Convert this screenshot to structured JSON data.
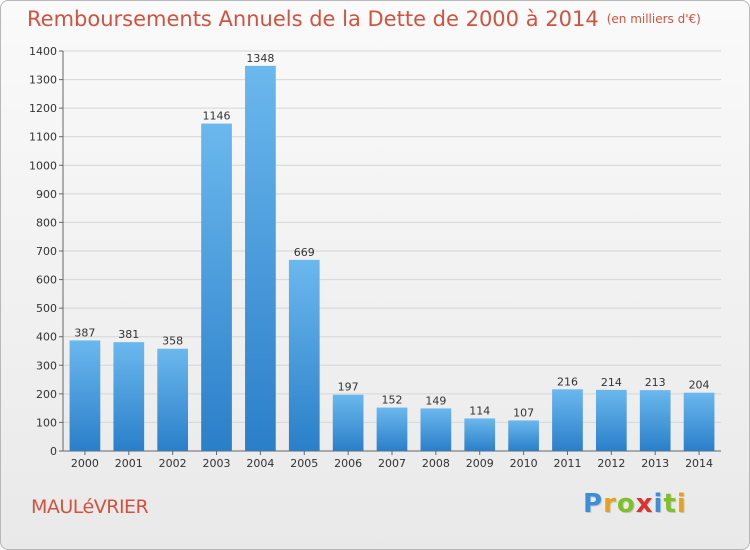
{
  "title": "Remboursements Annuels de la Dette de 2000 à 2014",
  "unit_label": "(en milliers d'€)",
  "commune": "MAULéVRIER",
  "logo": {
    "letters": [
      "P",
      "r",
      "o",
      "x",
      "i",
      "t",
      "i"
    ],
    "colors": [
      "#3a8fd8",
      "#e8a21a",
      "#7fbf2a",
      "#d9332f",
      "#3a8fd8",
      "#7fbf2a",
      "#e8a21a"
    ]
  },
  "colors": {
    "bar_light": "#6bb8ee",
    "bar_dark": "#2a7fc9",
    "title": "#d1533f"
  },
  "chart_data": {
    "type": "bar",
    "title": "Remboursements Annuels de la Dette de 2000 à 2014",
    "xlabel": "",
    "ylabel": "",
    "categories": [
      "2000",
      "2001",
      "2002",
      "2003",
      "2004",
      "2005",
      "2006",
      "2007",
      "2008",
      "2009",
      "2010",
      "2011",
      "2012",
      "2013",
      "2014"
    ],
    "values": [
      387,
      381,
      358,
      1146,
      1348,
      669,
      197,
      152,
      149,
      114,
      107,
      216,
      214,
      213,
      204
    ],
    "ylim": [
      0,
      1400
    ],
    "yticks": [
      0,
      100,
      200,
      300,
      400,
      500,
      600,
      700,
      800,
      900,
      1000,
      1100,
      1200,
      1300,
      1400
    ],
    "grid": true,
    "legend": "none"
  }
}
